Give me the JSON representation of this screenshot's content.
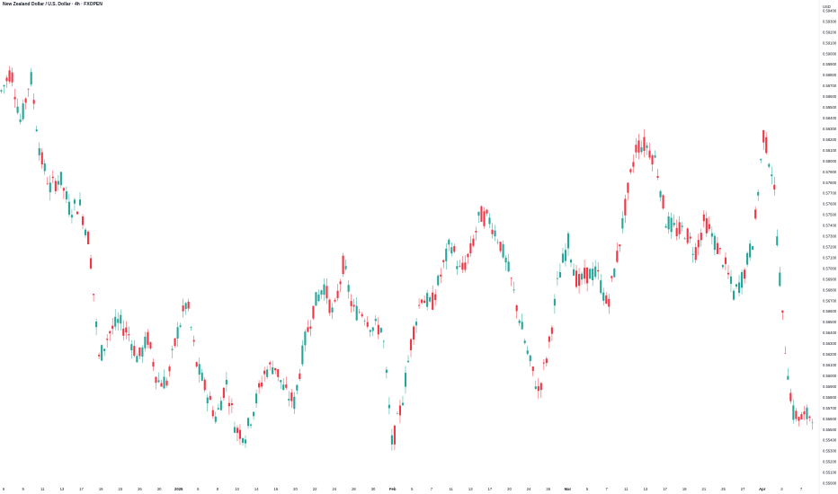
{
  "title": "New Zealand Dollar / U.S. Dollar · 4h · FXOPEN",
  "currency_label": "USD",
  "colors": {
    "up": "#26a69a",
    "down": "#f23645",
    "axis_text": "#131722",
    "background": "#ffffff",
    "axis_line": "#e0e3eb"
  },
  "chart_data": {
    "type": "candlestick",
    "timeframe": "4h",
    "symbol": "NZDUSD",
    "ylim": [
      0.549,
      0.595
    ],
    "y_ticks": [
      "0.59400",
      "0.59300",
      "0.59200",
      "0.59100",
      "0.59000",
      "0.58900",
      "0.58800",
      "0.58700",
      "0.58600",
      "0.58500",
      "0.58400",
      "0.58300",
      "0.58200",
      "0.58100",
      "0.58000",
      "0.57900",
      "0.57800",
      "0.57700",
      "0.57600",
      "0.57500",
      "0.57400",
      "0.57300",
      "0.57200",
      "0.57100",
      "0.57000",
      "0.56900",
      "0.56800",
      "0.56700",
      "0.56600",
      "0.56500",
      "0.56400",
      "0.56300",
      "0.56200",
      "0.56100",
      "0.56000",
      "0.55900",
      "0.55800",
      "0.55700",
      "0.55600",
      "0.55500",
      "0.55400",
      "0.55300",
      "0.55200",
      "0.55100",
      "0.55000"
    ],
    "x_ticks": [
      {
        "label": "5",
        "bold": false
      },
      {
        "label": "9",
        "bold": false
      },
      {
        "label": "11",
        "bold": false
      },
      {
        "label": "13",
        "bold": false
      },
      {
        "label": "17",
        "bold": false
      },
      {
        "label": "19",
        "bold": false
      },
      {
        "label": "23",
        "bold": false
      },
      {
        "label": "26",
        "bold": false
      },
      {
        "label": "30",
        "bold": false
      },
      {
        "label": "2025",
        "bold": true
      },
      {
        "label": "6",
        "bold": false
      },
      {
        "label": "8",
        "bold": false
      },
      {
        "label": "10",
        "bold": false
      },
      {
        "label": "14",
        "bold": false
      },
      {
        "label": "16",
        "bold": false
      },
      {
        "label": "20",
        "bold": false
      },
      {
        "label": "22",
        "bold": false
      },
      {
        "label": "24",
        "bold": false
      },
      {
        "label": "28",
        "bold": false
      },
      {
        "label": "30",
        "bold": false
      },
      {
        "label": "Feb",
        "bold": true
      },
      {
        "label": "5",
        "bold": false
      },
      {
        "label": "7",
        "bold": false
      },
      {
        "label": "11",
        "bold": false
      },
      {
        "label": "13",
        "bold": false
      },
      {
        "label": "17",
        "bold": false
      },
      {
        "label": "20",
        "bold": false
      },
      {
        "label": "24",
        "bold": false
      },
      {
        "label": "26",
        "bold": false
      },
      {
        "label": "Mar",
        "bold": true
      },
      {
        "label": "5",
        "bold": false
      },
      {
        "label": "7",
        "bold": false
      },
      {
        "label": "11",
        "bold": false
      },
      {
        "label": "13",
        "bold": false
      },
      {
        "label": "17",
        "bold": false
      },
      {
        "label": "19",
        "bold": false
      },
      {
        "label": "21",
        "bold": false
      },
      {
        "label": "25",
        "bold": false
      },
      {
        "label": "27",
        "bold": false
      },
      {
        "label": "Apr",
        "bold": true
      },
      {
        "label": "3",
        "bold": false
      },
      {
        "label": "7",
        "bold": false
      }
    ],
    "anchors": [
      [
        0.586,
        0.589,
        0.5855,
        0.587
      ],
      [
        0.588,
        0.59,
        0.587,
        0.589
      ],
      [
        0.584,
        0.589,
        0.582,
        0.583
      ],
      [
        0.589,
        0.5895,
        0.586,
        0.587
      ],
      [
        0.58,
        0.586,
        0.5795,
        0.581
      ],
      [
        0.579,
        0.58,
        0.5745,
        0.576
      ],
      [
        0.578,
        0.58,
        0.577,
        0.579
      ],
      [
        0.575,
        0.579,
        0.574,
        0.576
      ],
      [
        0.577,
        0.579,
        0.574,
        0.575
      ],
      [
        0.574,
        0.576,
        0.57,
        0.571
      ],
      [
        0.562,
        0.571,
        0.56,
        0.561
      ],
      [
        0.565,
        0.567,
        0.562,
        0.563
      ],
      [
        0.566,
        0.567,
        0.563,
        0.564
      ],
      [
        0.565,
        0.566,
        0.562,
        0.563
      ],
      [
        0.562,
        0.564,
        0.56,
        0.561
      ],
      [
        0.563,
        0.565,
        0.561,
        0.564
      ],
      [
        0.559,
        0.563,
        0.558,
        0.56
      ],
      [
        0.56,
        0.561,
        0.558,
        0.559
      ],
      [
        0.563,
        0.566,
        0.561,
        0.565
      ],
      [
        0.565,
        0.57,
        0.563,
        0.569
      ],
      [
        0.561,
        0.569,
        0.56,
        0.561
      ],
      [
        0.559,
        0.56,
        0.557,
        0.558
      ],
      [
        0.556,
        0.559,
        0.555,
        0.556
      ],
      [
        0.56,
        0.561,
        0.558,
        0.559
      ],
      [
        0.555,
        0.558,
        0.554,
        0.555
      ],
      [
        0.555,
        0.556,
        0.553,
        0.554
      ],
      [
        0.557,
        0.559,
        0.556,
        0.558
      ],
      [
        0.56,
        0.562,
        0.558,
        0.561
      ],
      [
        0.559,
        0.564,
        0.558,
        0.563
      ],
      [
        0.559,
        0.562,
        0.557,
        0.558
      ],
      [
        0.558,
        0.56,
        0.556,
        0.557
      ],
      [
        0.562,
        0.565,
        0.561,
        0.564
      ],
      [
        0.567,
        0.569,
        0.564,
        0.566
      ],
      [
        0.568,
        0.57,
        0.566,
        0.569
      ],
      [
        0.566,
        0.568,
        0.564,
        0.565
      ],
      [
        0.572,
        0.573,
        0.568,
        0.569
      ],
      [
        0.566,
        0.57,
        0.565,
        0.566
      ],
      [
        0.566,
        0.567,
        0.564,
        0.566
      ],
      [
        0.565,
        0.566,
        0.563,
        0.564
      ],
      [
        0.563,
        0.568,
        0.562,
        0.566
      ],
      [
        0.553,
        0.561,
        0.552,
        0.554
      ],
      [
        0.556,
        0.561,
        0.555,
        0.559
      ],
      [
        0.562,
        0.566,
        0.56,
        0.565
      ],
      [
        0.567,
        0.57,
        0.565,
        0.568
      ],
      [
        0.566,
        0.568,
        0.564,
        0.567
      ],
      [
        0.569,
        0.572,
        0.567,
        0.57
      ],
      [
        0.572,
        0.574,
        0.57,
        0.573
      ],
      [
        0.57,
        0.572,
        0.568,
        0.569
      ],
      [
        0.572,
        0.574,
        0.568,
        0.571
      ],
      [
        0.574,
        0.577,
        0.572,
        0.576
      ],
      [
        0.574,
        0.576,
        0.572,
        0.575
      ],
      [
        0.572,
        0.574,
        0.57,
        0.573
      ],
      [
        0.57,
        0.572,
        0.568,
        0.569
      ],
      [
        0.566,
        0.569,
        0.564,
        0.565
      ],
      [
        0.562,
        0.566,
        0.56,
        0.561
      ],
      [
        0.558,
        0.561,
        0.557,
        0.559
      ],
      [
        0.562,
        0.564,
        0.56,
        0.563
      ],
      [
        0.568,
        0.572,
        0.566,
        0.57
      ],
      [
        0.572,
        0.575,
        0.57,
        0.573
      ],
      [
        0.569,
        0.574,
        0.567,
        0.568
      ],
      [
        0.568,
        0.572,
        0.567,
        0.571
      ],
      [
        0.57,
        0.572,
        0.568,
        0.569
      ],
      [
        0.566,
        0.57,
        0.565,
        0.567
      ],
      [
        0.57,
        0.574,
        0.568,
        0.572
      ],
      [
        0.576,
        0.578,
        0.574,
        0.577
      ],
      [
        0.581,
        0.583,
        0.579,
        0.582
      ],
      [
        0.582,
        0.584,
        0.58,
        0.581
      ],
      [
        0.579,
        0.582,
        0.578,
        0.581
      ],
      [
        0.574,
        0.579,
        0.573,
        0.575
      ],
      [
        0.573,
        0.575,
        0.571,
        0.574
      ],
      [
        0.574,
        0.576,
        0.572,
        0.573
      ],
      [
        0.571,
        0.574,
        0.57,
        0.572
      ],
      [
        0.575,
        0.577,
        0.572,
        0.574
      ],
      [
        0.572,
        0.575,
        0.571,
        0.573
      ],
      [
        0.57,
        0.573,
        0.569,
        0.571
      ],
      [
        0.567,
        0.57,
        0.566,
        0.568
      ],
      [
        0.569,
        0.571,
        0.567,
        0.57
      ],
      [
        0.572,
        0.575,
        0.571,
        0.574
      ],
      [
        0.582,
        0.585,
        0.579,
        0.583
      ],
      [
        0.579,
        0.583,
        0.577,
        0.578
      ],
      [
        0.564,
        0.578,
        0.563,
        0.565
      ],
      [
        0.556,
        0.565,
        0.555,
        0.557
      ],
      [
        0.556,
        0.559,
        0.553,
        0.556
      ],
      [
        0.557,
        0.559,
        0.555,
        0.556
      ]
    ]
  }
}
